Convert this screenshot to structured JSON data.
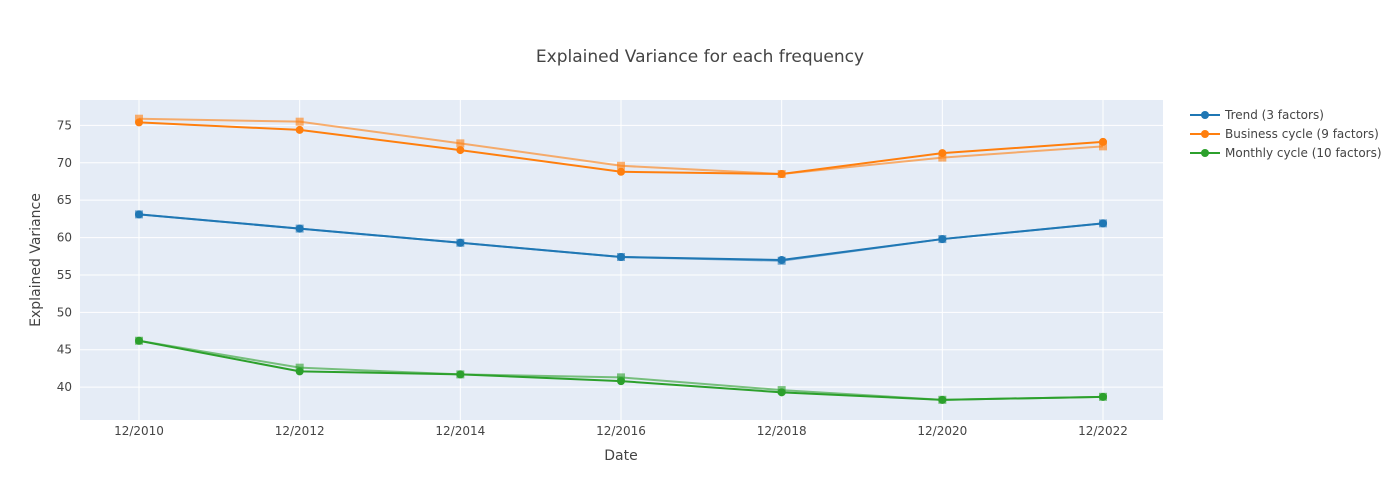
{
  "chart_data": {
    "type": "line",
    "title": "Explained Variance for each frequency",
    "xlabel": "Date",
    "ylabel": "Explained Variance",
    "x": [
      "12/2010",
      "12/2012",
      "12/2014",
      "12/2016",
      "12/2018",
      "12/2020",
      "12/2022"
    ],
    "xticks": [
      "12/2010",
      "12/2012",
      "12/2014",
      "12/2016",
      "12/2018",
      "12/2020",
      "12/2022"
    ],
    "yticks": [
      40,
      45,
      50,
      55,
      60,
      65,
      70,
      75
    ],
    "ylim": [
      35.6,
      78.4
    ],
    "grid": true,
    "legend_position": "top-right",
    "series": [
      {
        "name": "Trend (3 factors)",
        "color": "#1f77b4",
        "marker": "circle",
        "values": [
          63.1,
          61.2,
          59.3,
          57.4,
          57.0,
          59.8,
          61.9
        ],
        "comparison": {
          "marker": "square",
          "values": [
            63.1,
            61.2,
            59.3,
            57.4,
            56.9,
            59.8,
            61.9
          ]
        }
      },
      {
        "name": "Business cycle (9 factors)",
        "color": "#ff7f0e",
        "marker": "circle",
        "values": [
          75.4,
          74.4,
          71.7,
          68.8,
          68.5,
          71.3,
          72.8
        ],
        "comparison": {
          "marker": "square",
          "values": [
            75.9,
            75.5,
            72.6,
            69.6,
            68.5,
            70.7,
            72.2
          ]
        }
      },
      {
        "name": "Monthly cycle (10 factors)",
        "color": "#2ca02c",
        "marker": "circle",
        "values": [
          46.2,
          42.1,
          41.7,
          40.8,
          39.3,
          38.3,
          38.7
        ],
        "comparison": {
          "marker": "square",
          "values": [
            46.2,
            42.6,
            41.7,
            41.3,
            39.6,
            38.3,
            38.7
          ]
        }
      }
    ]
  }
}
